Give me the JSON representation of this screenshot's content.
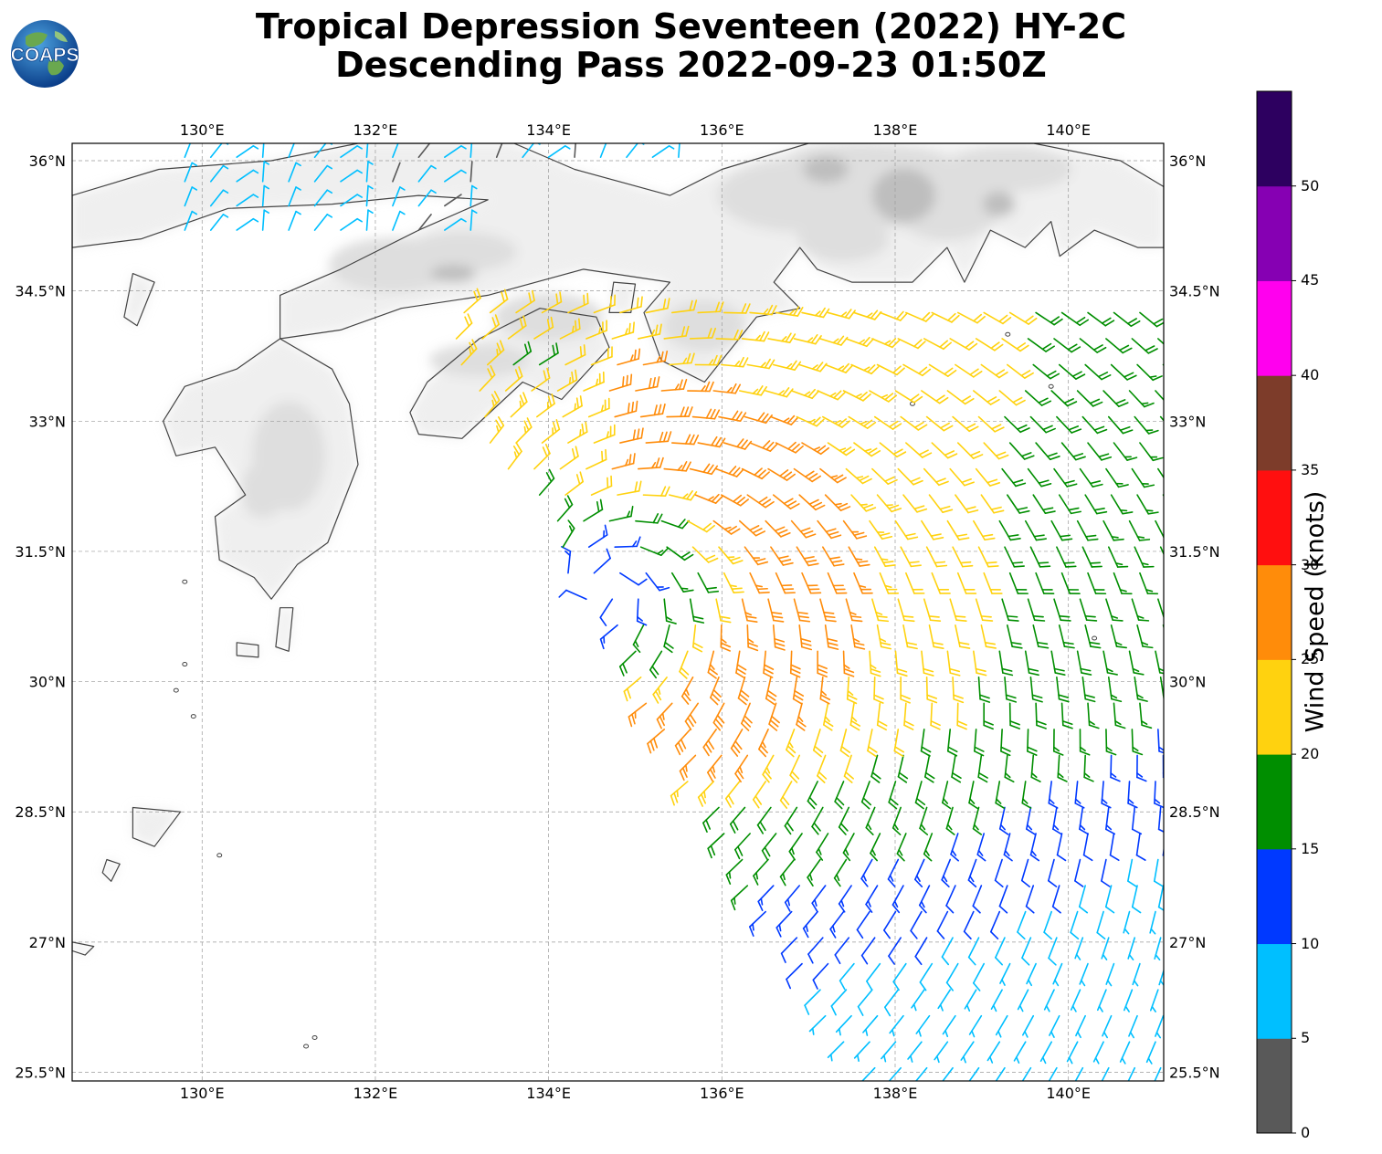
{
  "title_line1": "Tropical Depression Seventeen (2022) HY-2C",
  "title_line2": "Descending Pass 2022-09-23 01:50Z",
  "logo": {
    "text": "COAPS",
    "icon": "globe-icon"
  },
  "map": {
    "extent_lon": [
      128.5,
      141.1
    ],
    "extent_lat": [
      25.4,
      36.2
    ],
    "lon_ticks": [
      "130°E",
      "132°E",
      "134°E",
      "136°E",
      "138°E",
      "140°E"
    ],
    "lon_tick_values": [
      130,
      132,
      134,
      136,
      138,
      140
    ],
    "lat_ticks": [
      "36°N",
      "34.5°N",
      "33°N",
      "31.5°N",
      "30°N",
      "28.5°N",
      "27°N",
      "25.5°N"
    ],
    "lat_tick_values": [
      36,
      34.5,
      33,
      31.5,
      30,
      28.5,
      27,
      25.5
    ],
    "storm_center": {
      "lon": 134.6,
      "lat": 31.1
    },
    "gridlines": true,
    "coastline_color": "#444444",
    "terrain_color": "#bdbdbd"
  },
  "colorbar": {
    "label": "Wind Speed (knots)",
    "tick_labels": [
      "0",
      "5",
      "10",
      "15",
      "20",
      "25",
      "30",
      "35",
      "40",
      "45",
      "50"
    ],
    "bins": [
      {
        "min": 0,
        "max": 5,
        "color": "#595959"
      },
      {
        "min": 5,
        "max": 10,
        "color": "#00bfff"
      },
      {
        "min": 10,
        "max": 15,
        "color": "#0039ff"
      },
      {
        "min": 15,
        "max": 20,
        "color": "#008e00"
      },
      {
        "min": 20,
        "max": 25,
        "color": "#ffd20f"
      },
      {
        "min": 25,
        "max": 30,
        "color": "#ff8c0a"
      },
      {
        "min": 30,
        "max": 35,
        "color": "#ff0f0f"
      },
      {
        "min": 35,
        "max": 40,
        "color": "#7d3c2a"
      },
      {
        "min": 40,
        "max": 45,
        "color": "#ff00ee"
      },
      {
        "min": 45,
        "max": 50,
        "color": "#8600b3"
      },
      {
        "min": 50,
        "max": 55,
        "color": "#2d0060"
      }
    ]
  }
}
